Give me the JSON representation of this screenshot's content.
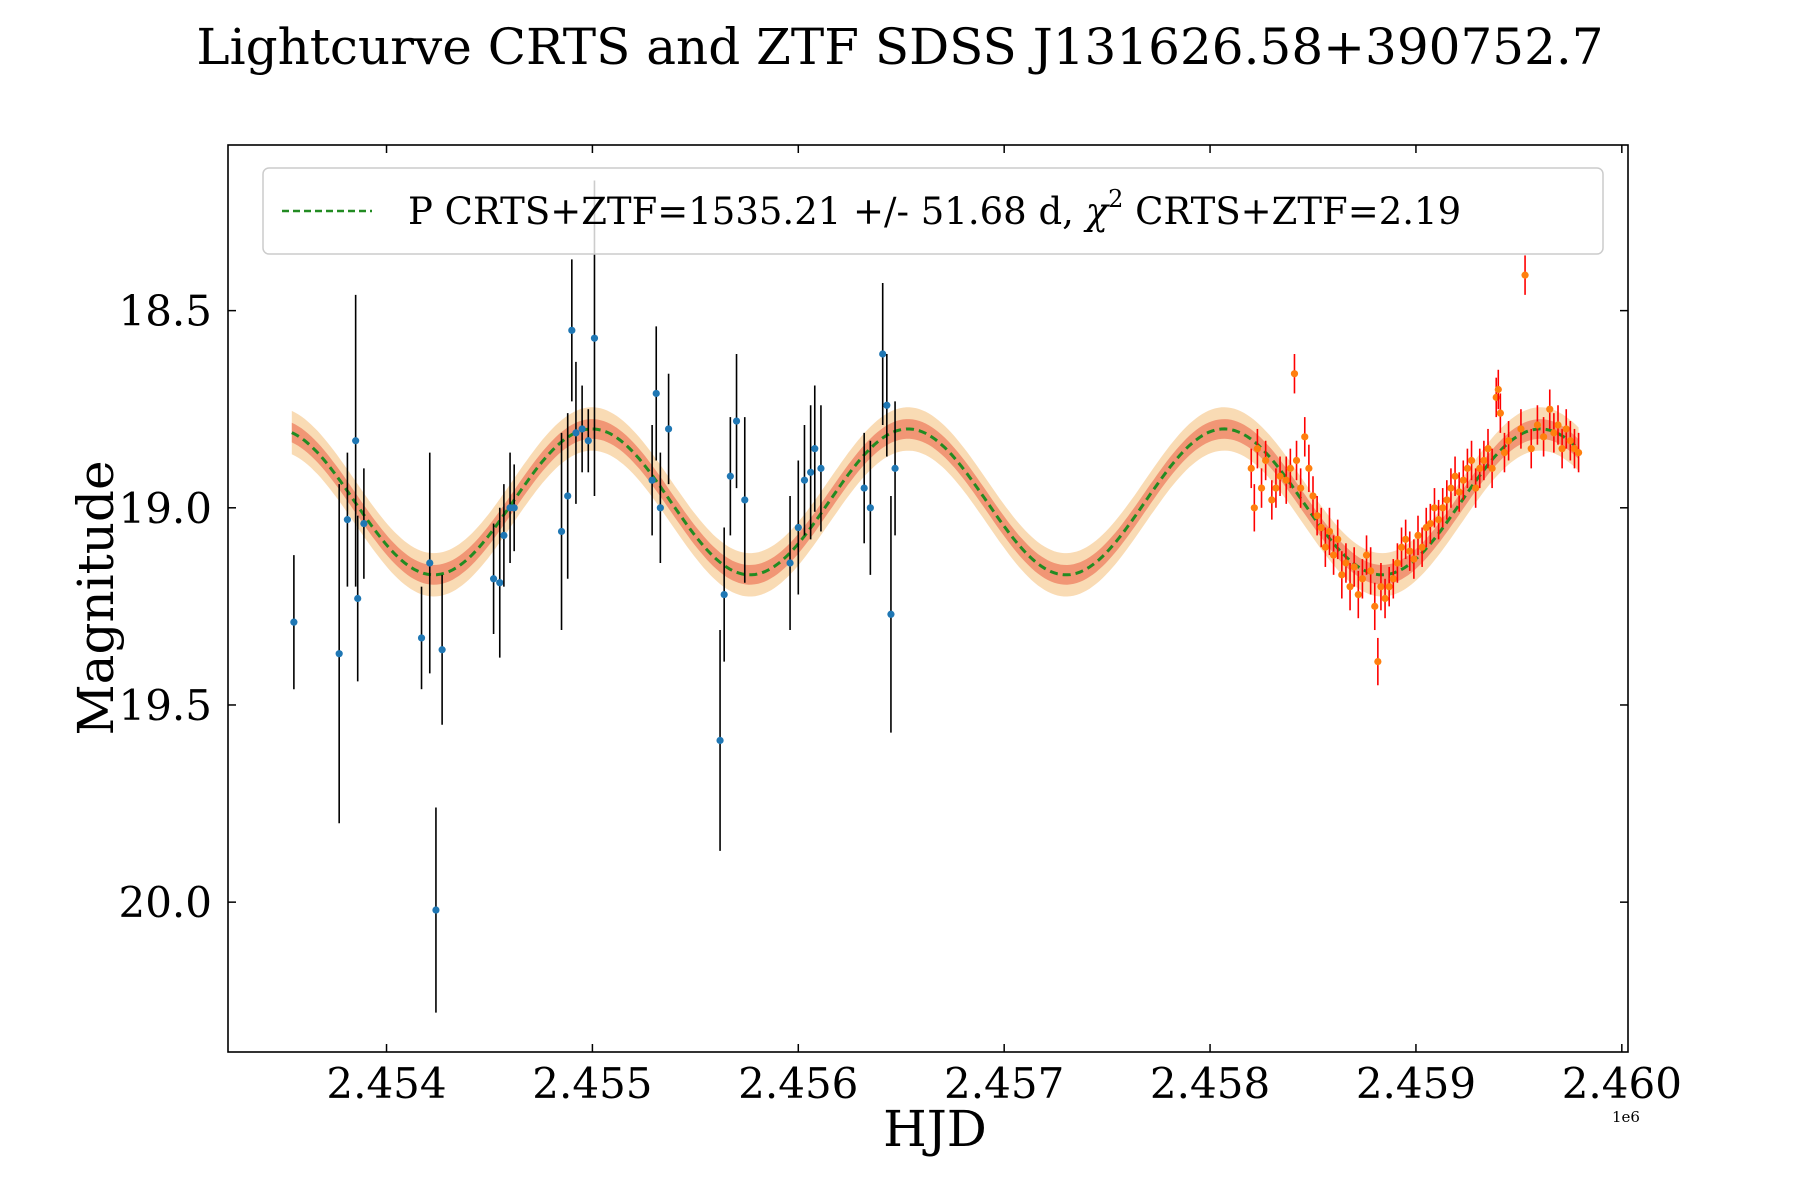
{
  "chart_data": {
    "type": "scatter",
    "title": "Lightcurve CRTS and ZTF SDSS J131626.58+390752.7",
    "xlabel": "HJD",
    "ylabel": "Magnitude",
    "x_offset_label": "1e6",
    "xlim": [
      2453230,
      2460030
    ],
    "ylim": [
      20.38,
      18.08
    ],
    "y_inverted": true,
    "xticks": [
      2454000,
      2455000,
      2456000,
      2457000,
      2458000,
      2459000,
      2460000
    ],
    "xtick_labels": [
      "2.454",
      "2.455",
      "2.456",
      "2.457",
      "2.458",
      "2.459",
      "2.460"
    ],
    "yticks": [
      18.5,
      19.0,
      19.5,
      20.0
    ],
    "ytick_labels": [
      "18.5",
      "19.0",
      "19.5",
      "20.0"
    ],
    "legend": {
      "placement": "top-center",
      "label_main": "P CRTS+ZTF=1535.21 +/- 51.68 d, ",
      "label_chi": "χ",
      "label_sup": "2",
      "label_tail": " CRTS+ZTF=2.19"
    },
    "model": {
      "name": "P CRTS+ZTF=1535.21 +/- 51.68 d, χ² CRTS+ZTF=2.19",
      "period_days": 1535.21,
      "period_err_days": 51.68,
      "chi2": 2.19,
      "mean_mag": 18.985,
      "amplitude": 0.185,
      "t_min_phase": 2454230,
      "x_start": 2453540,
      "x_end": 2459790,
      "band_inner": 0.025,
      "band_outer": 0.055,
      "line_color": "#228B22",
      "band_inner_color": "#f08a6a",
      "band_outer_color": "#f7cf9b"
    },
    "series": [
      {
        "name": "CRTS",
        "marker_color": "#1f77b4",
        "errorbar_color": "#000000",
        "points": [
          [
            2453550,
            19.29,
            0.17
          ],
          [
            2453770,
            19.37,
            0.43
          ],
          [
            2453810,
            19.03,
            0.17
          ],
          [
            2453850,
            18.83,
            0.37
          ],
          [
            2453860,
            19.23,
            0.21
          ],
          [
            2453890,
            19.04,
            0.14
          ],
          [
            2454170,
            19.33,
            0.13
          ],
          [
            2454210,
            19.14,
            0.28
          ],
          [
            2454240,
            20.02,
            0.26
          ],
          [
            2454270,
            19.36,
            0.19
          ],
          [
            2454520,
            19.18,
            0.14
          ],
          [
            2454550,
            19.19,
            0.19
          ],
          [
            2454570,
            19.07,
            0.13
          ],
          [
            2454600,
            19.0,
            0.14
          ],
          [
            2454620,
            19.0,
            0.11
          ],
          [
            2454850,
            19.06,
            0.25
          ],
          [
            2454880,
            18.97,
            0.21
          ],
          [
            2454900,
            18.55,
            0.18
          ],
          [
            2454920,
            18.81,
            0.18
          ],
          [
            2454950,
            18.8,
            0.11
          ],
          [
            2454980,
            18.83,
            0.08
          ],
          [
            2455010,
            18.57,
            0.4
          ],
          [
            2455290,
            18.93,
            0.14
          ],
          [
            2455310,
            18.71,
            0.17
          ],
          [
            2455330,
            19.0,
            0.14
          ],
          [
            2455370,
            18.8,
            0.14
          ],
          [
            2455620,
            19.59,
            0.28
          ],
          [
            2455640,
            19.22,
            0.17
          ],
          [
            2455670,
            18.92,
            0.15
          ],
          [
            2455700,
            18.78,
            0.17
          ],
          [
            2455740,
            18.98,
            0.21
          ],
          [
            2455960,
            19.14,
            0.17
          ],
          [
            2456000,
            19.05,
            0.17
          ],
          [
            2456030,
            18.93,
            0.14
          ],
          [
            2456060,
            18.91,
            0.17
          ],
          [
            2456080,
            18.85,
            0.16
          ],
          [
            2456110,
            18.9,
            0.16
          ],
          [
            2456320,
            18.95,
            0.14
          ],
          [
            2456350,
            19.0,
            0.17
          ],
          [
            2456410,
            18.61,
            0.18
          ],
          [
            2456430,
            18.74,
            0.13
          ],
          [
            2456450,
            19.27,
            0.3
          ],
          [
            2456470,
            18.9,
            0.17
          ]
        ]
      },
      {
        "name": "ZTF",
        "marker_color": "#ff7f0e",
        "errorbar_color": "#ff0000",
        "points": [
          [
            2458200,
            18.9,
            0.05
          ],
          [
            2458215,
            19.0,
            0.06
          ],
          [
            2458230,
            18.85,
            0.05
          ],
          [
            2458250,
            18.95,
            0.05
          ],
          [
            2458270,
            18.88,
            0.05
          ],
          [
            2458300,
            18.98,
            0.05
          ],
          [
            2458320,
            18.95,
            0.05
          ],
          [
            2458340,
            18.92,
            0.05
          ],
          [
            2458370,
            18.93,
            0.06
          ],
          [
            2458390,
            18.9,
            0.05
          ],
          [
            2458410,
            18.66,
            0.05
          ],
          [
            2458420,
            18.88,
            0.05
          ],
          [
            2458440,
            18.95,
            0.05
          ],
          [
            2458460,
            18.82,
            0.05
          ],
          [
            2458480,
            18.9,
            0.06
          ],
          [
            2458500,
            18.97,
            0.05
          ],
          [
            2458520,
            19.02,
            0.05
          ],
          [
            2458540,
            19.05,
            0.05
          ],
          [
            2458560,
            19.1,
            0.05
          ],
          [
            2458580,
            19.06,
            0.06
          ],
          [
            2458600,
            19.12,
            0.05
          ],
          [
            2458620,
            19.08,
            0.05
          ],
          [
            2458640,
            19.17,
            0.06
          ],
          [
            2458660,
            19.14,
            0.05
          ],
          [
            2458680,
            19.2,
            0.06
          ],
          [
            2458700,
            19.15,
            0.05
          ],
          [
            2458720,
            19.22,
            0.06
          ],
          [
            2458740,
            19.18,
            0.05
          ],
          [
            2458760,
            19.12,
            0.05
          ],
          [
            2458780,
            19.16,
            0.06
          ],
          [
            2458800,
            19.25,
            0.06
          ],
          [
            2458815,
            19.39,
            0.06
          ],
          [
            2458830,
            19.2,
            0.06
          ],
          [
            2458850,
            19.23,
            0.05
          ],
          [
            2458870,
            19.2,
            0.05
          ],
          [
            2458890,
            19.18,
            0.05
          ],
          [
            2458910,
            19.14,
            0.05
          ],
          [
            2458930,
            19.1,
            0.05
          ],
          [
            2458950,
            19.08,
            0.05
          ],
          [
            2458970,
            19.11,
            0.05
          ],
          [
            2458990,
            19.13,
            0.05
          ],
          [
            2459010,
            19.07,
            0.05
          ],
          [
            2459030,
            19.1,
            0.05
          ],
          [
            2459050,
            19.05,
            0.05
          ],
          [
            2459070,
            19.04,
            0.05
          ],
          [
            2459090,
            19.0,
            0.05
          ],
          [
            2459110,
            19.03,
            0.05
          ],
          [
            2459130,
            19.0,
            0.05
          ],
          [
            2459150,
            18.98,
            0.05
          ],
          [
            2459170,
            18.95,
            0.05
          ],
          [
            2459190,
            18.92,
            0.05
          ],
          [
            2459210,
            18.96,
            0.05
          ],
          [
            2459230,
            18.93,
            0.05
          ],
          [
            2459250,
            18.9,
            0.05
          ],
          [
            2459270,
            18.88,
            0.05
          ],
          [
            2459290,
            18.95,
            0.05
          ],
          [
            2459310,
            18.9,
            0.05
          ],
          [
            2459330,
            18.88,
            0.05
          ],
          [
            2459350,
            18.85,
            0.05
          ],
          [
            2459370,
            18.9,
            0.05
          ],
          [
            2459390,
            18.72,
            0.05
          ],
          [
            2459400,
            18.7,
            0.05
          ],
          [
            2459410,
            18.76,
            0.05
          ],
          [
            2459430,
            18.86,
            0.05
          ],
          [
            2459450,
            18.83,
            0.05
          ],
          [
            2459510,
            18.8,
            0.05
          ],
          [
            2459530,
            18.41,
            0.05
          ],
          [
            2459560,
            18.85,
            0.05
          ],
          [
            2459590,
            18.79,
            0.05
          ],
          [
            2459620,
            18.82,
            0.05
          ],
          [
            2459650,
            18.75,
            0.05
          ],
          [
            2459670,
            18.81,
            0.05
          ],
          [
            2459690,
            18.79,
            0.05
          ],
          [
            2459710,
            18.85,
            0.05
          ],
          [
            2459730,
            18.8,
            0.05
          ],
          [
            2459750,
            18.83,
            0.05
          ],
          [
            2459770,
            18.85,
            0.05
          ],
          [
            2459790,
            18.86,
            0.05
          ]
        ]
      }
    ]
  }
}
